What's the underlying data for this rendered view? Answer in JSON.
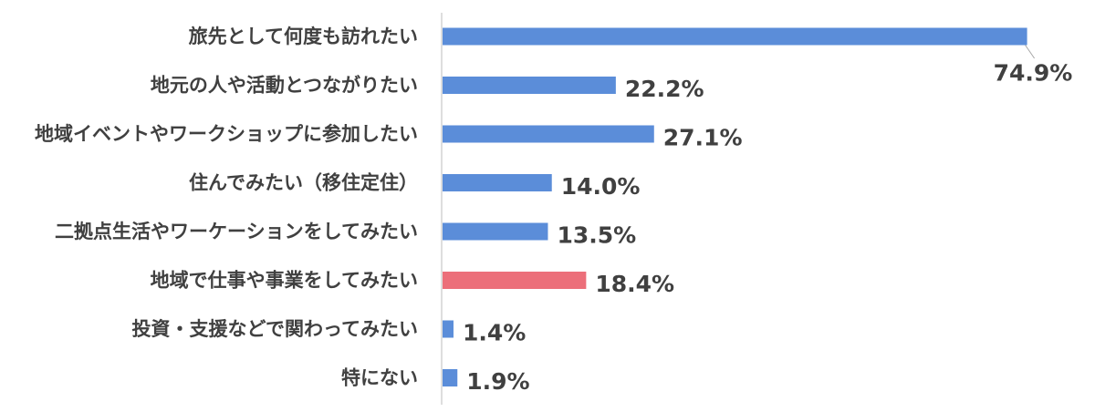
{
  "chart_data": {
    "type": "bar",
    "orientation": "horizontal",
    "categories": [
      "旅先として何度も訪れたい",
      "地元の人や活動とつながりたい",
      "地域イベントやワークショップに参加したい",
      "住んでみたい（移住定住）",
      "二拠点生活やワーケーションをしてみたい",
      "地域で仕事や事業をしてみたい",
      "投資・支援などで関わってみたい",
      "特にない"
    ],
    "values": [
      74.9,
      22.2,
      27.1,
      14.0,
      13.5,
      18.4,
      1.4,
      1.9
    ],
    "value_labels": [
      "74.9%",
      "22.2%",
      "27.1%",
      "14.0%",
      "13.5%",
      "18.4%",
      "1.4%",
      "1.9%"
    ],
    "bar_colors": [
      "#5b8dd9",
      "#5b8dd9",
      "#5b8dd9",
      "#5b8dd9",
      "#5b8dd9",
      "#ec6f7a",
      "#5b8dd9",
      "#5b8dd9"
    ],
    "highlight_index": 5,
    "xlim": [
      0,
      76
    ],
    "grid": false,
    "legend": "none",
    "title": "",
    "xlabel": "",
    "ylabel": ""
  }
}
